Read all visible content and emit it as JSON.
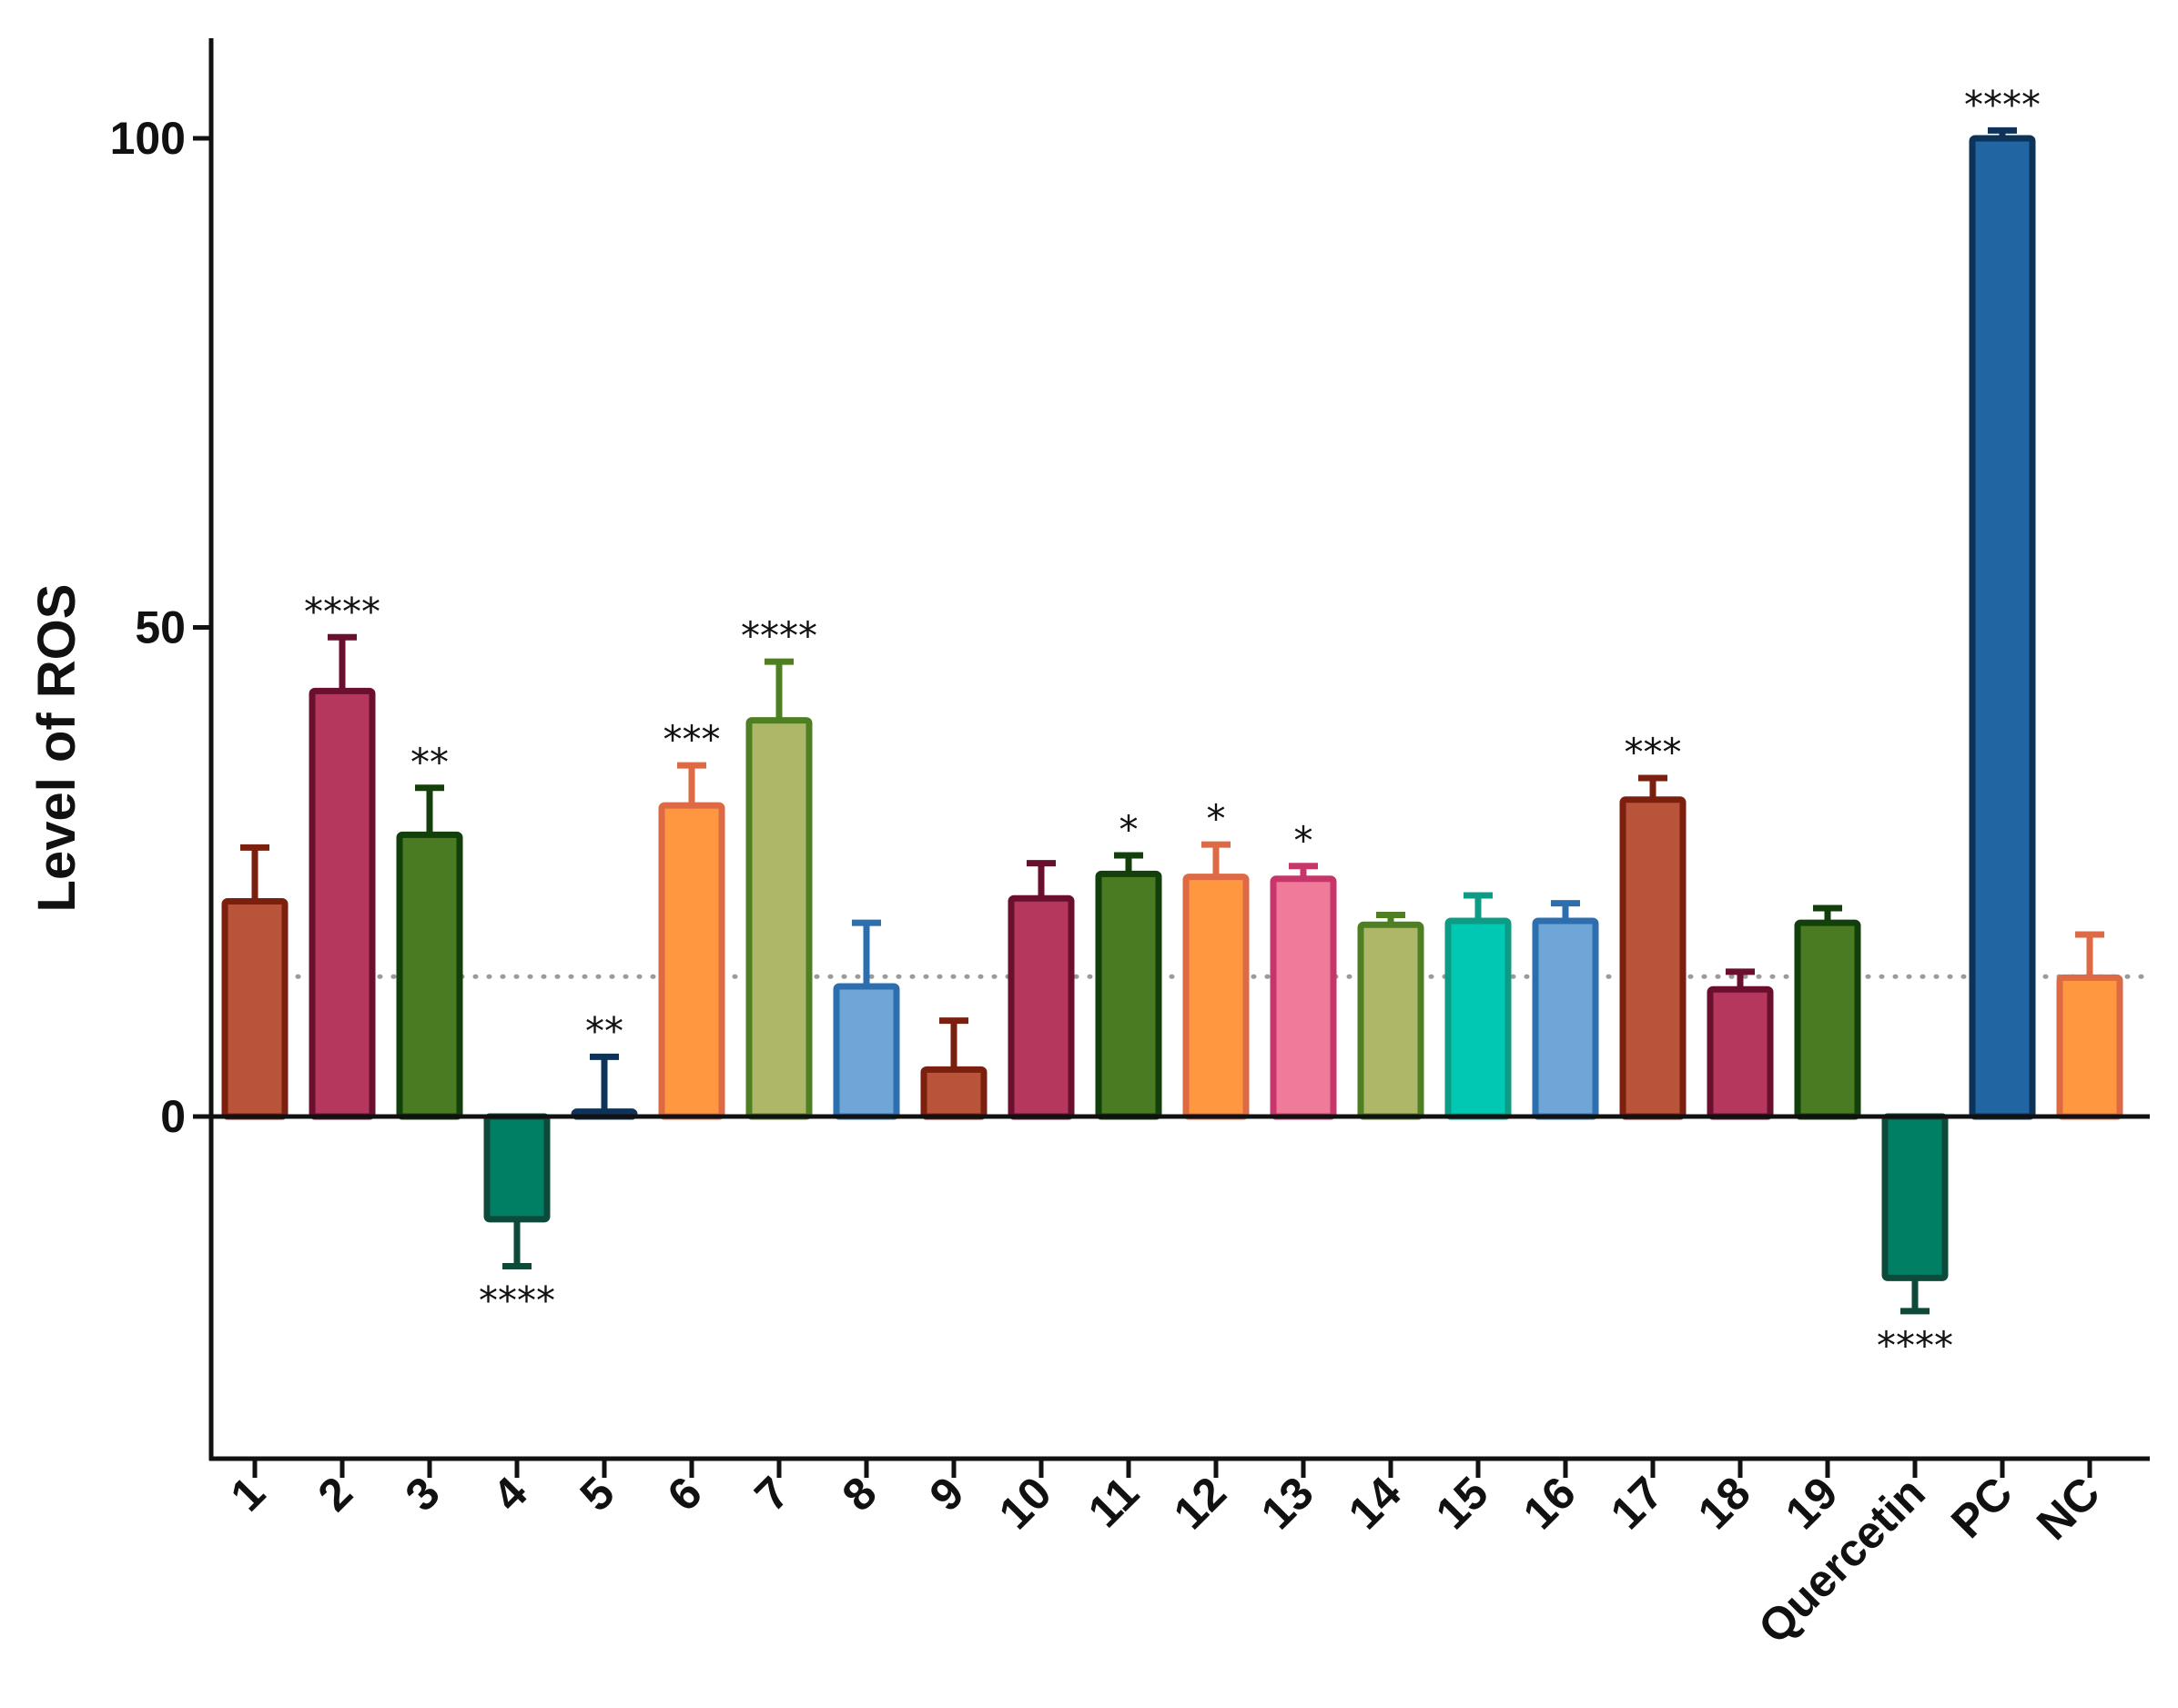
{
  "chart_data": {
    "type": "bar",
    "title": "",
    "xlabel": "",
    "ylabel": "Level of ROS",
    "ylim": [
      -35,
      110
    ],
    "yticks": [
      0,
      50,
      100
    ],
    "reference_line": 14.3,
    "grid": false,
    "categories": [
      "1",
      "2",
      "3",
      "4",
      "5",
      "6",
      "7",
      "8",
      "9",
      "10",
      "11",
      "12",
      "13",
      "14",
      "15",
      "16",
      "17",
      "18",
      "19",
      "Quercetin",
      "PC",
      "NC"
    ],
    "values": [
      22,
      43.5,
      28.8,
      -10.5,
      0.5,
      31.8,
      40.5,
      13.3,
      4.8,
      22.3,
      24.8,
      24.5,
      24.3,
      19.6,
      20,
      20,
      32.4,
      13,
      19.8,
      -16.5,
      100,
      14.2
    ],
    "errors": [
      5.5,
      5.5,
      4.8,
      4.8,
      5.6,
      4.1,
      6,
      6.5,
      5,
      3.6,
      1.9,
      3.3,
      1.3,
      1,
      2.6,
      1.8,
      2.2,
      1.8,
      1.5,
      3.4,
      0.8,
      4.4
    ],
    "significance": [
      "",
      "****",
      "**",
      "****",
      "**",
      "***",
      "****",
      "",
      "",
      "",
      "*",
      "*",
      "*",
      "",
      "",
      "",
      "***",
      "",
      "",
      "****",
      "****",
      ""
    ],
    "fill_colors": [
      "#b9533a",
      "#b5375e",
      "#4a7b23",
      "#007f65",
      "#1d4f7a",
      "#ff9640",
      "#adb767",
      "#6fa6d8",
      "#b9533a",
      "#b5375e",
      "#4a7b23",
      "#ff9640",
      "#f07a99",
      "#adb767",
      "#00c8b3",
      "#6fa6d8",
      "#b9533a",
      "#b5375e",
      "#4a7b23",
      "#007f65",
      "#2165a3",
      "#ff9640"
    ],
    "edge_colors": [
      "#7b1f0f",
      "#6a0f2e",
      "#133f0a",
      "#0e4a3a",
      "#0e3358",
      "#dd6a44",
      "#4e7f23",
      "#2d6fae",
      "#7b1f0f",
      "#6a0f2e",
      "#133f0a",
      "#dd6a44",
      "#c7366a",
      "#4e7f23",
      "#0c9b85",
      "#2d6fae",
      "#7b1f0f",
      "#6a0f2e",
      "#133f0a",
      "#0e4a3a",
      "#0e3358",
      "#dd6a44"
    ]
  }
}
